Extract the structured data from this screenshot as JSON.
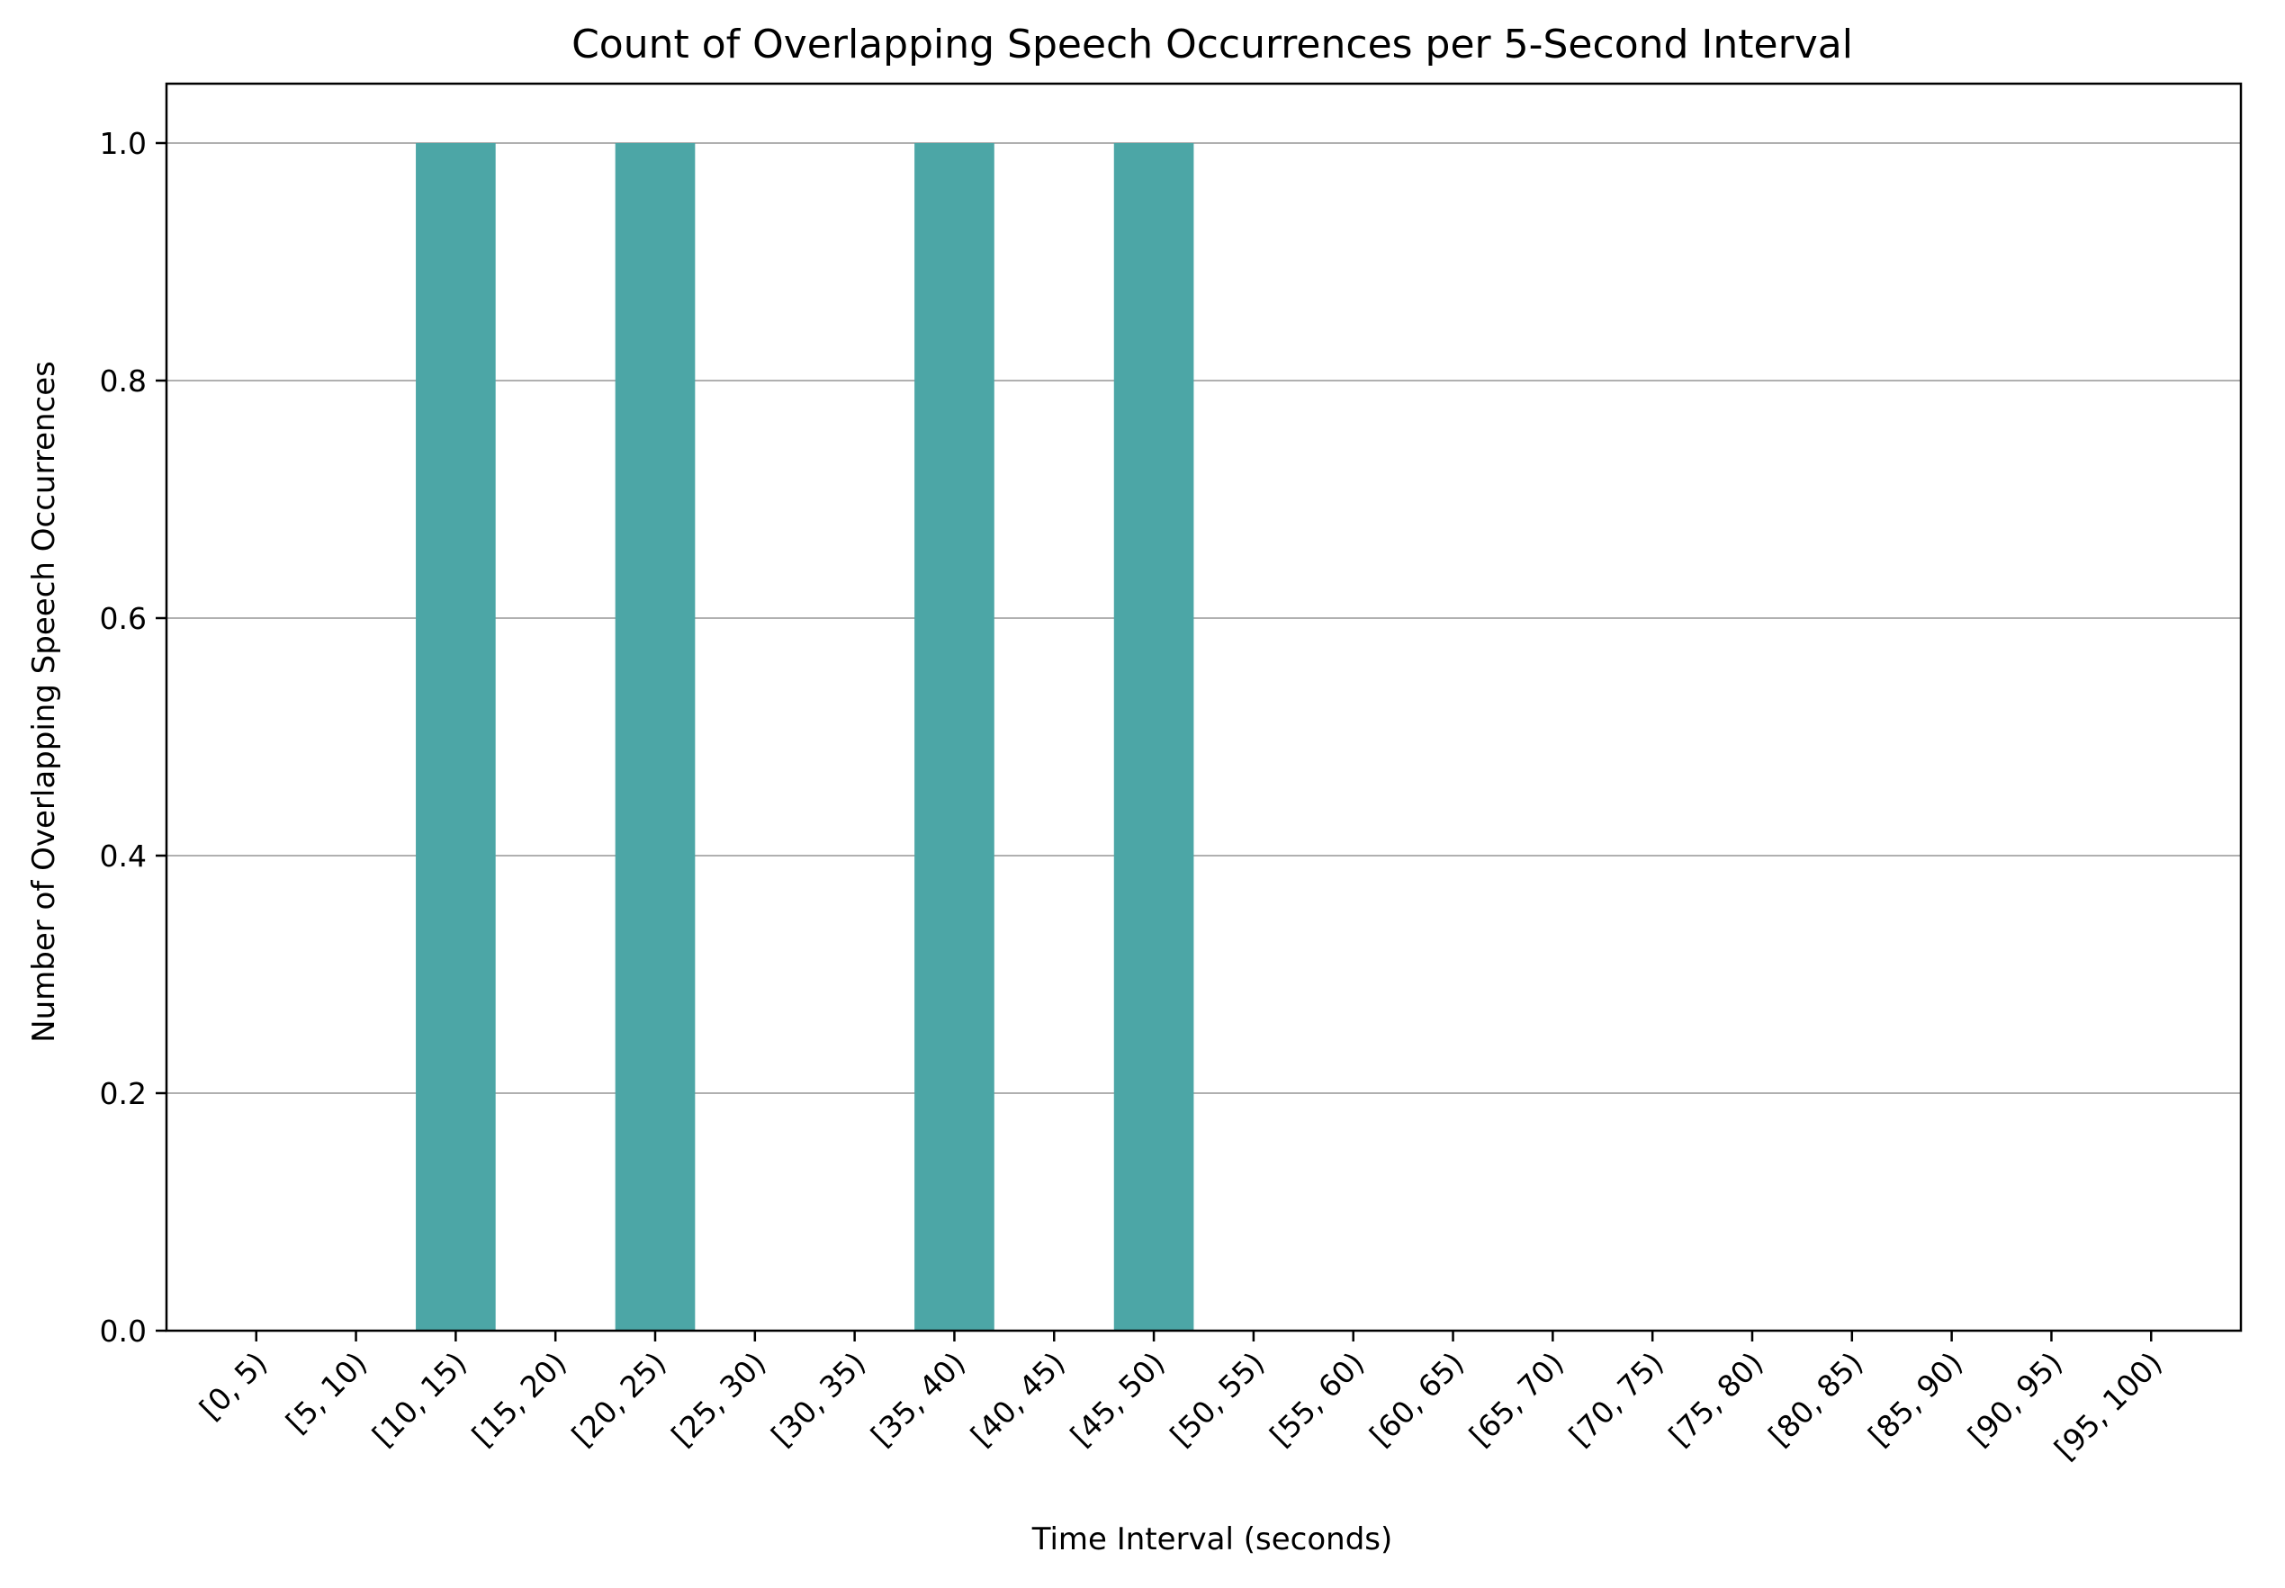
{
  "chart_data": {
    "type": "bar",
    "title": "Count of Overlapping Speech Occurrences per 5-Second Interval",
    "xlabel": "Time Interval (seconds)",
    "ylabel": "Number of Overlapping Speech Occurrences",
    "categories": [
      "[0, 5)",
      "[5, 10)",
      "[10, 15)",
      "[15, 20)",
      "[20, 25)",
      "[25, 30)",
      "[30, 35)",
      "[35, 40)",
      "[40, 45)",
      "[45, 50)",
      "[50, 55)",
      "[55, 60)",
      "[60, 65)",
      "[65, 70)",
      "[70, 75)",
      "[75, 80)",
      "[80, 85)",
      "[85, 90)",
      "[90, 95)",
      "[95, 100)"
    ],
    "values": [
      0,
      0,
      1,
      0,
      1,
      0,
      0,
      1,
      0,
      1,
      0,
      0,
      0,
      0,
      0,
      0,
      0,
      0,
      0,
      0
    ],
    "ylim": [
      0,
      1.05
    ],
    "yticks": [
      0.0,
      0.2,
      0.4,
      0.6,
      0.8,
      1.0
    ],
    "ytick_labels": [
      "0.0",
      "0.2",
      "0.4",
      "0.6",
      "0.8",
      "1.0"
    ],
    "bar_color": "#4ca6a6",
    "grid": "y-axis horizontal lines",
    "grid_color": "#b0b0b0"
  }
}
